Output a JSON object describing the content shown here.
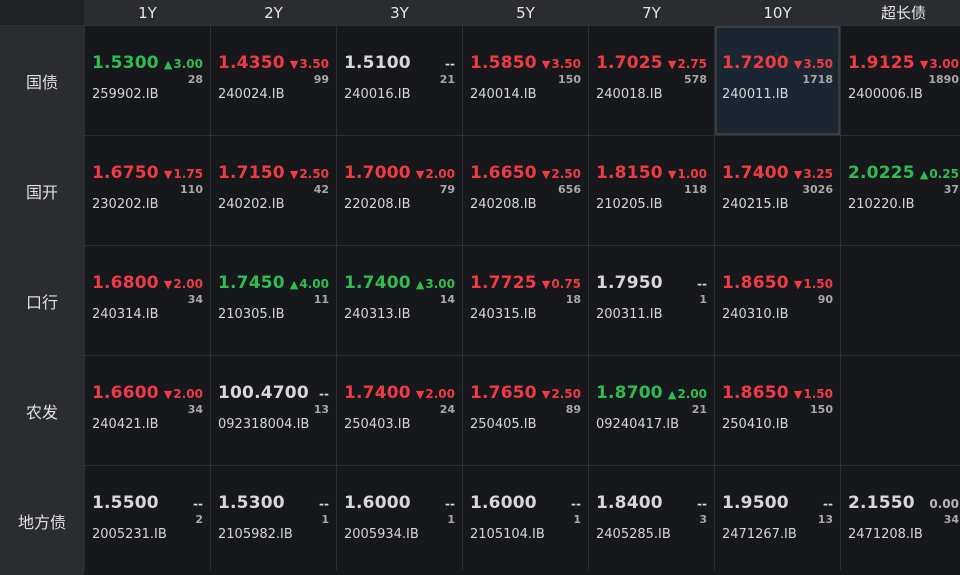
{
  "colors": {
    "up": "#2ebd4e",
    "down": "#ef3b44",
    "flat": "#d8d8d8",
    "background": "#16181c",
    "header": "#2a2c30",
    "selected": "#1b2633"
  },
  "columns": [
    "1Y",
    "2Y",
    "3Y",
    "5Y",
    "7Y",
    "10Y",
    "超长债"
  ],
  "rows": [
    {
      "label": "国债",
      "cells": [
        {
          "yield": "1.5300",
          "arrow": "▲",
          "change": "3.00",
          "count": "28",
          "code": "259902.IB",
          "dir": "up",
          "yield_dir": "up"
        },
        {
          "yield": "1.4350",
          "arrow": "▼",
          "change": "3.50",
          "count": "99",
          "code": "240024.IB",
          "dir": "down",
          "yield_dir": "down"
        },
        {
          "yield": "1.5100",
          "arrow": "",
          "change": "--",
          "count": "21",
          "code": "240016.IB",
          "dir": "flat",
          "yield_dir": "flat"
        },
        {
          "yield": "1.5850",
          "arrow": "▼",
          "change": "3.50",
          "count": "150",
          "code": "240014.IB",
          "dir": "down",
          "yield_dir": "down"
        },
        {
          "yield": "1.7025",
          "arrow": "▼",
          "change": "2.75",
          "count": "578",
          "code": "240018.IB",
          "dir": "down",
          "yield_dir": "down"
        },
        {
          "yield": "1.7200",
          "arrow": "▼",
          "change": "3.50",
          "count": "1718",
          "code": "240011.IB",
          "dir": "down",
          "yield_dir": "down",
          "selected": true
        },
        {
          "yield": "1.9125",
          "arrow": "▼",
          "change": "3.00",
          "count": "1890",
          "code": "2400006.IB",
          "dir": "down",
          "yield_dir": "down"
        }
      ]
    },
    {
      "label": "国开",
      "cells": [
        {
          "yield": "1.6750",
          "arrow": "▼",
          "change": "1.75",
          "count": "110",
          "code": "230202.IB",
          "dir": "down",
          "yield_dir": "down"
        },
        {
          "yield": "1.7150",
          "arrow": "▼",
          "change": "2.50",
          "count": "42",
          "code": "240202.IB",
          "dir": "down",
          "yield_dir": "down"
        },
        {
          "yield": "1.7000",
          "arrow": "▼",
          "change": "2.00",
          "count": "79",
          "code": "220208.IB",
          "dir": "down",
          "yield_dir": "down"
        },
        {
          "yield": "1.6650",
          "arrow": "▼",
          "change": "2.50",
          "count": "656",
          "code": "240208.IB",
          "dir": "down",
          "yield_dir": "down"
        },
        {
          "yield": "1.8150",
          "arrow": "▼",
          "change": "1.00",
          "count": "118",
          "code": "210205.IB",
          "dir": "down",
          "yield_dir": "down"
        },
        {
          "yield": "1.7400",
          "arrow": "▼",
          "change": "3.25",
          "count": "3026",
          "code": "240215.IB",
          "dir": "down",
          "yield_dir": "down"
        },
        {
          "yield": "2.0225",
          "arrow": "▲",
          "change": "0.25",
          "count": "37",
          "code": "210220.IB",
          "dir": "up",
          "yield_dir": "up"
        }
      ]
    },
    {
      "label": "口行",
      "cells": [
        {
          "yield": "1.6800",
          "arrow": "▼",
          "change": "2.00",
          "count": "34",
          "code": "240314.IB",
          "dir": "down",
          "yield_dir": "down"
        },
        {
          "yield": "1.7450",
          "arrow": "▲",
          "change": "4.00",
          "count": "11",
          "code": "210305.IB",
          "dir": "up",
          "yield_dir": "up"
        },
        {
          "yield": "1.7400",
          "arrow": "▲",
          "change": "3.00",
          "count": "14",
          "code": "240313.IB",
          "dir": "up",
          "yield_dir": "up"
        },
        {
          "yield": "1.7725",
          "arrow": "▼",
          "change": "0.75",
          "count": "18",
          "code": "240315.IB",
          "dir": "down",
          "yield_dir": "down"
        },
        {
          "yield": "1.7950",
          "arrow": "",
          "change": "--",
          "count": "1",
          "code": "200311.IB",
          "dir": "flat",
          "yield_dir": "flat"
        },
        {
          "yield": "1.8650",
          "arrow": "▼",
          "change": "1.50",
          "count": "90",
          "code": "240310.IB",
          "dir": "down",
          "yield_dir": "down"
        },
        null
      ]
    },
    {
      "label": "农发",
      "cells": [
        {
          "yield": "1.6600",
          "arrow": "▼",
          "change": "2.00",
          "count": "34",
          "code": "240421.IB",
          "dir": "down",
          "yield_dir": "down"
        },
        {
          "yield": "100.4700",
          "arrow": "",
          "change": "--",
          "count": "13",
          "code": "092318004.IB",
          "dir": "flat",
          "yield_dir": "flat"
        },
        {
          "yield": "1.7400",
          "arrow": "▼",
          "change": "2.00",
          "count": "24",
          "code": "250403.IB",
          "dir": "down",
          "yield_dir": "down"
        },
        {
          "yield": "1.7650",
          "arrow": "▼",
          "change": "2.50",
          "count": "89",
          "code": "250405.IB",
          "dir": "down",
          "yield_dir": "down"
        },
        {
          "yield": "1.8700",
          "arrow": "▲",
          "change": "2.00",
          "count": "21",
          "code": "09240417.IB",
          "dir": "up",
          "yield_dir": "up"
        },
        {
          "yield": "1.8650",
          "arrow": "▼",
          "change": "1.50",
          "count": "150",
          "code": "250410.IB",
          "dir": "down",
          "yield_dir": "down"
        },
        null
      ]
    },
    {
      "label": "地方债",
      "cells": [
        {
          "yield": "1.5500",
          "arrow": "",
          "change": "--",
          "count": "2",
          "code": "2005231.IB",
          "dir": "flat",
          "yield_dir": "flat"
        },
        {
          "yield": "1.5300",
          "arrow": "",
          "change": "--",
          "count": "1",
          "code": "2105982.IB",
          "dir": "flat",
          "yield_dir": "flat"
        },
        {
          "yield": "1.6000",
          "arrow": "",
          "change": "--",
          "count": "1",
          "code": "2005934.IB",
          "dir": "flat",
          "yield_dir": "flat"
        },
        {
          "yield": "1.6000",
          "arrow": "",
          "change": "--",
          "count": "1",
          "code": "2105104.IB",
          "dir": "flat",
          "yield_dir": "flat"
        },
        {
          "yield": "1.8400",
          "arrow": "",
          "change": "--",
          "count": "3",
          "code": "2405285.IB",
          "dir": "flat",
          "yield_dir": "flat"
        },
        {
          "yield": "1.9500",
          "arrow": "",
          "change": "--",
          "count": "13",
          "code": "2471267.IB",
          "dir": "flat",
          "yield_dir": "flat"
        },
        {
          "yield": "2.1550",
          "arrow": "",
          "change": "0.00",
          "count": "34",
          "code": "2471208.IB",
          "dir": "nochg",
          "yield_dir": "flat"
        }
      ]
    }
  ]
}
